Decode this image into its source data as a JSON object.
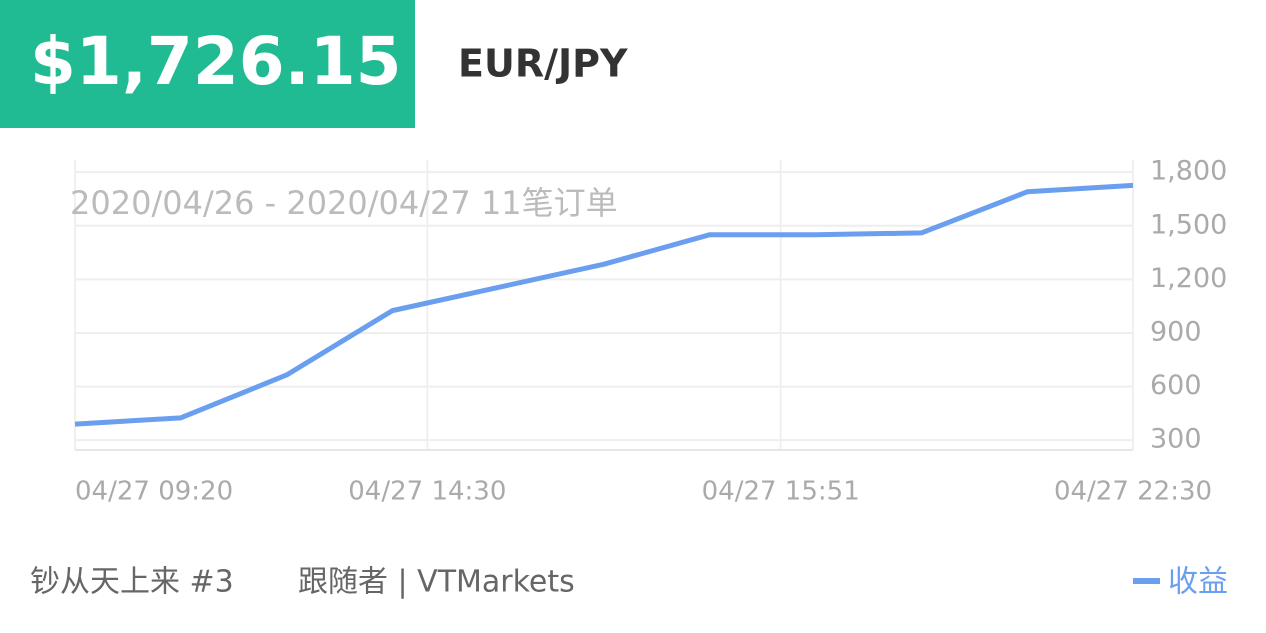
{
  "header": {
    "amount": "$1,726.15",
    "pair": "EUR/JPY"
  },
  "chart_data": {
    "type": "line",
    "subtitle": "2020/04/26 - 2020/04/27  11笔订单",
    "x": [
      0,
      1,
      2,
      3,
      4,
      5,
      6,
      7,
      8,
      9,
      10
    ],
    "xlim": [
      0,
      10
    ],
    "xticks": [
      {
        "value": 0,
        "label": "04/27 09:20"
      },
      {
        "value": 3.33,
        "label": "04/27 14:30"
      },
      {
        "value": 6.67,
        "label": "04/27 15:51"
      },
      {
        "value": 10,
        "label": "04/27 22:30"
      }
    ],
    "ylim": [
      245,
      1868
    ],
    "yticks": [
      {
        "value": 300,
        "label": "300"
      },
      {
        "value": 600,
        "label": "600"
      },
      {
        "value": 900,
        "label": "900"
      },
      {
        "value": 1200,
        "label": "1,200"
      },
      {
        "value": 1500,
        "label": "1,500"
      },
      {
        "value": 1800,
        "label": "1,800"
      }
    ],
    "grid": true,
    "legend": "bottom-right",
    "series": [
      {
        "name": "收益",
        "color": "#6a9ff0",
        "values": [
          390,
          425,
          665,
          1025,
          1155,
          1285,
          1450,
          1450,
          1460,
          1690,
          1726
        ]
      }
    ]
  },
  "footer": {
    "account": "钞从天上来 #3",
    "role": "跟随者 | VTMarkets"
  }
}
